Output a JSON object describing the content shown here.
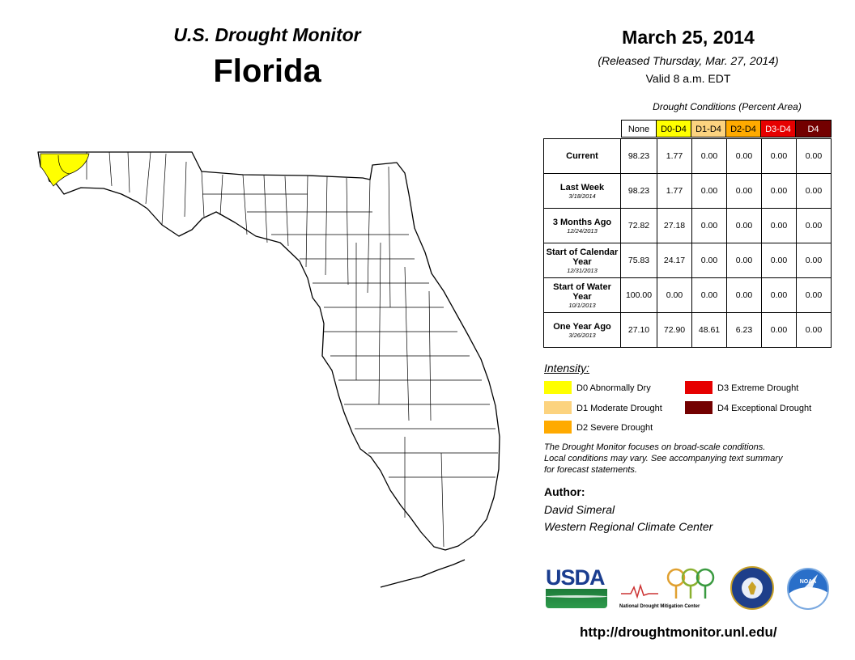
{
  "header": {
    "title": "U.S. Drought Monitor",
    "state": "Florida",
    "date": "March 25, 2014",
    "released": "(Released Thursday, Mar. 27, 2014)",
    "valid": "Valid 8 a.m. EDT"
  },
  "table": {
    "caption": "Drought Conditions (Percent Area)",
    "columns": [
      {
        "label": "None",
        "color": "#ffffff"
      },
      {
        "label": "D0-D4",
        "color": "#ffff00"
      },
      {
        "label": "D1-D4",
        "color": "#fcd37f"
      },
      {
        "label": "D2-D4",
        "color": "#ffaa00"
      },
      {
        "label": "D3-D4",
        "color": "#e60000"
      },
      {
        "label": "D4",
        "color": "#730000"
      }
    ],
    "rows": [
      {
        "label": "Current",
        "sub": "",
        "values": [
          "98.23",
          "1.77",
          "0.00",
          "0.00",
          "0.00",
          "0.00"
        ]
      },
      {
        "label": "Last Week",
        "sub": "3/18/2014",
        "values": [
          "98.23",
          "1.77",
          "0.00",
          "0.00",
          "0.00",
          "0.00"
        ]
      },
      {
        "label": "3 Months Ago",
        "sub": "12/24/2013",
        "values": [
          "72.82",
          "27.18",
          "0.00",
          "0.00",
          "0.00",
          "0.00"
        ]
      },
      {
        "label": "Start of Calendar Year",
        "sub": "12/31/2013",
        "values": [
          "75.83",
          "24.17",
          "0.00",
          "0.00",
          "0.00",
          "0.00"
        ]
      },
      {
        "label": "Start of Water Year",
        "sub": "10/1/2013",
        "values": [
          "100.00",
          "0.00",
          "0.00",
          "0.00",
          "0.00",
          "0.00"
        ]
      },
      {
        "label": "One Year Ago",
        "sub": "3/26/2013",
        "values": [
          "27.10",
          "72.90",
          "48.61",
          "6.23",
          "0.00",
          "0.00"
        ]
      }
    ]
  },
  "legend": {
    "title": "Intensity:",
    "items": [
      {
        "label": "D0 Abnormally Dry",
        "color": "#ffff00"
      },
      {
        "label": "D1 Moderate Drought",
        "color": "#fcd37f"
      },
      {
        "label": "D2 Severe Drought",
        "color": "#ffaa00"
      },
      {
        "label": "D3 Extreme Drought",
        "color": "#e60000"
      },
      {
        "label": "D4 Exceptional Drought",
        "color": "#730000"
      }
    ]
  },
  "note": {
    "line1": "The Drought Monitor focuses on broad-scale conditions.",
    "line2": "Local conditions may vary. See accompanying text summary",
    "line3": "for forecast statements."
  },
  "author": {
    "heading": "Author:",
    "name": "David Simeral",
    "org": "Western Regional Climate Center"
  },
  "logos": {
    "usda": "USDA",
    "ndmc": "National Drought Mitigation Center",
    "noaa": "NOAA"
  },
  "url": "http://droughtmonitor.unl.edu/"
}
